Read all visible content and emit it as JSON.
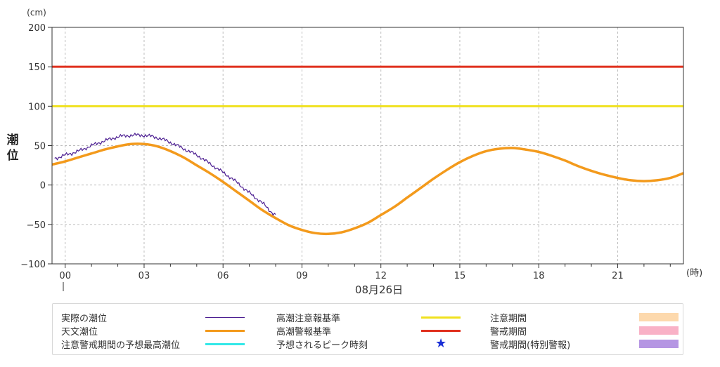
{
  "chart_data": {
    "type": "line",
    "ylabel": "潮位",
    "y_unit": "(cm)",
    "x_unit": "(時)",
    "date_label": "08月26日",
    "ylim": [
      -100,
      200
    ],
    "y_ticks": [
      "200",
      "150",
      "100",
      "50",
      "0",
      "−50",
      "−100"
    ],
    "xlim": [
      -0.5,
      23.5
    ],
    "x_ticks": [
      "00",
      "03",
      "06",
      "09",
      "12",
      "15",
      "18",
      "21"
    ],
    "grid": true,
    "thresholds": [
      {
        "name": "高潮警報基準",
        "value": 150,
        "color": "#e0301e"
      },
      {
        "name": "高潮注意報基準",
        "value": 100,
        "color": "#f0e11e"
      }
    ],
    "series": [
      {
        "name": "天文潮位",
        "color": "#f39a1c",
        "x": [
          -0.5,
          0,
          0.5,
          1,
          1.5,
          2,
          2.5,
          3,
          3.5,
          4,
          4.5,
          5,
          5.5,
          6,
          6.5,
          7,
          7.5,
          8,
          8.5,
          9,
          9.5,
          10,
          10.5,
          11,
          11.5,
          12,
          12.5,
          13,
          13.5,
          14,
          14.5,
          15,
          15.5,
          16,
          16.5,
          17,
          17.5,
          18,
          18.5,
          19,
          19.5,
          20,
          20.5,
          21,
          21.5,
          22,
          22.5,
          23,
          23.5
        ],
        "y": [
          26,
          30,
          35,
          40,
          45,
          49,
          52,
          52,
          49,
          43,
          35,
          25,
          15,
          4,
          -8,
          -20,
          -32,
          -42,
          -51,
          -57,
          -61,
          -62,
          -60,
          -55,
          -48,
          -38,
          -28,
          -16,
          -4,
          8,
          19,
          29,
          37,
          43,
          46,
          47,
          45,
          42,
          37,
          31,
          24,
          18,
          13,
          9,
          6,
          5,
          6,
          9,
          15
        ]
      },
      {
        "name": "実際の潮位",
        "color": "#4b1d91",
        "x": [
          -0.4,
          0,
          0.5,
          1,
          1.5,
          2,
          2.5,
          3,
          3.5,
          4,
          4.5,
          5,
          5.5,
          6,
          6.5,
          7,
          7.5,
          8
        ],
        "y": [
          34,
          38,
          43,
          50,
          56,
          61,
          63,
          63,
          60,
          54,
          46,
          38,
          27,
          16,
          4,
          -10,
          -23,
          -38
        ]
      }
    ],
    "legend": [
      {
        "name": "実際の潮位",
        "kind": "thin-line",
        "color": "#4b1d91"
      },
      {
        "name": "天文潮位",
        "kind": "line",
        "color": "#f39a1c"
      },
      {
        "name": "注意警戒期間の予想最高潮位",
        "kind": "line",
        "color": "#34e8e8"
      },
      {
        "name": "高潮注意報基準",
        "kind": "line",
        "color": "#f0e11e"
      },
      {
        "name": "高潮警報基準",
        "kind": "line",
        "color": "#e0301e"
      },
      {
        "name": "予想されるピーク時刻",
        "kind": "star",
        "color": "#1a2fd6",
        "symbol": "★"
      },
      {
        "name": "注意期間",
        "kind": "rect",
        "color": "#fdd9ad"
      },
      {
        "name": "警戒期間",
        "kind": "rect",
        "color": "#f9b1c6"
      },
      {
        "name": "警戒期間(特別警報)",
        "kind": "rect",
        "color": "#b596e3"
      }
    ]
  }
}
